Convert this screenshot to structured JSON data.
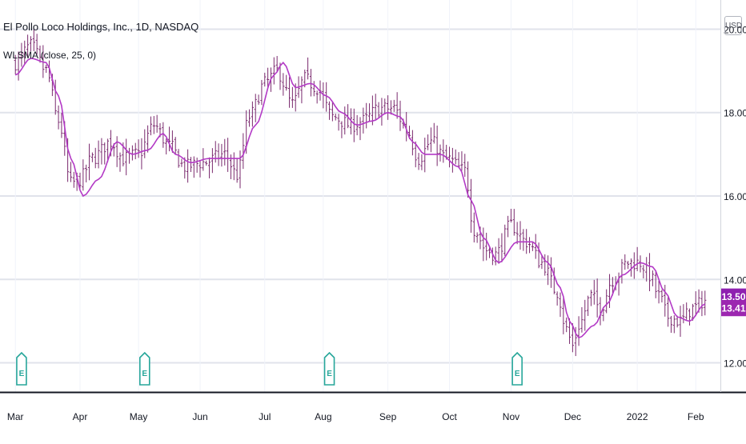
{
  "legend": {
    "symbol_title": "El Pollo Loco Holdings, Inc., 1D, NASDAQ",
    "indicator": "WLSMA (close, 25, 0)"
  },
  "currency_label": "USD",
  "colors": {
    "price_bars": "#7a2a6e",
    "ma_line": "#b339c6",
    "grid": "#e0e3eb",
    "earnings_marker": "#26a69a",
    "label_last": "#8e1fb0",
    "label_ma": "#9c27b0",
    "axis_text": "#131722"
  },
  "chart_data": {
    "type": "line",
    "title": "El Pollo Loco Holdings, Inc., 1D, NASDAQ",
    "ylim": [
      11.3,
      20.7
    ],
    "y_ticks": [
      12.0,
      14.0,
      16.0,
      18.0,
      20.0
    ],
    "y_tick_labels": [
      "12.00",
      "14.00",
      "16.00",
      "18.00",
      "20.00"
    ],
    "xlim_index": [
      -5,
      229
    ],
    "x_tick_labels": [
      {
        "label": "Mar",
        "index": 0
      },
      {
        "label": "Apr",
        "index": 21
      },
      {
        "label": "May",
        "index": 40
      },
      {
        "label": "Jun",
        "index": 60
      },
      {
        "label": "Jul",
        "index": 81
      },
      {
        "label": "Aug",
        "index": 100
      },
      {
        "label": "Sep",
        "index": 121
      },
      {
        "label": "Oct",
        "index": 141
      },
      {
        "label": "Nov",
        "index": 161
      },
      {
        "label": "Dec",
        "index": 181
      },
      {
        "label": "2022",
        "index": 202
      },
      {
        "label": "Feb",
        "index": 221
      }
    ],
    "grid": true,
    "series": [
      {
        "kind": "ohlc",
        "anchors": [
          {
            "i": 0,
            "c": 19.2
          },
          {
            "i": 5,
            "c": 19.6
          },
          {
            "i": 10,
            "c": 19.0
          },
          {
            "i": 14,
            "c": 17.8
          },
          {
            "i": 18,
            "c": 16.3
          },
          {
            "i": 21,
            "c": 16.4
          },
          {
            "i": 25,
            "c": 16.9
          },
          {
            "i": 31,
            "c": 17.3
          },
          {
            "i": 35,
            "c": 16.9
          },
          {
            "i": 40,
            "c": 17.0
          },
          {
            "i": 45,
            "c": 17.7
          },
          {
            "i": 50,
            "c": 17.2
          },
          {
            "i": 55,
            "c": 16.7
          },
          {
            "i": 61,
            "c": 16.8
          },
          {
            "i": 68,
            "c": 17.0
          },
          {
            "i": 72,
            "c": 16.5
          },
          {
            "i": 76,
            "c": 17.9
          },
          {
            "i": 81,
            "c": 18.7
          },
          {
            "i": 85,
            "c": 19.0
          },
          {
            "i": 90,
            "c": 18.2
          },
          {
            "i": 94,
            "c": 18.8
          },
          {
            "i": 98,
            "c": 18.6
          },
          {
            "i": 103,
            "c": 17.9
          },
          {
            "i": 109,
            "c": 17.7
          },
          {
            "i": 113,
            "c": 17.8
          },
          {
            "i": 118,
            "c": 18.1
          },
          {
            "i": 123,
            "c": 18.1
          },
          {
            "i": 127,
            "c": 17.6
          },
          {
            "i": 131,
            "c": 16.9
          },
          {
            "i": 135,
            "c": 17.3
          },
          {
            "i": 140,
            "c": 16.9
          },
          {
            "i": 146,
            "c": 16.6
          },
          {
            "i": 149,
            "c": 15.2
          },
          {
            "i": 153,
            "c": 14.7
          },
          {
            "i": 156,
            "c": 14.6
          },
          {
            "i": 161,
            "c": 15.3
          },
          {
            "i": 166,
            "c": 14.9
          },
          {
            "i": 171,
            "c": 14.4
          },
          {
            "i": 176,
            "c": 13.7
          },
          {
            "i": 179,
            "c": 12.8
          },
          {
            "i": 181,
            "c": 12.4
          },
          {
            "i": 183,
            "c": 12.9
          },
          {
            "i": 187,
            "c": 13.6
          },
          {
            "i": 190,
            "c": 13.3
          },
          {
            "i": 194,
            "c": 14.0
          },
          {
            "i": 199,
            "c": 14.4
          },
          {
            "i": 203,
            "c": 14.4
          },
          {
            "i": 206,
            "c": 14.1
          },
          {
            "i": 209,
            "c": 13.6
          },
          {
            "i": 212,
            "c": 13.1
          },
          {
            "i": 216,
            "c": 13.0
          },
          {
            "i": 220,
            "c": 13.3
          },
          {
            "i": 224,
            "c": 13.5
          }
        ],
        "last_close": 13.5,
        "last_label": "13.50"
      },
      {
        "name": "WLSMA (close, 25, 0)",
        "kind": "line",
        "anchors": [
          {
            "i": 0,
            "v": 18.9
          },
          {
            "i": 5,
            "v": 19.3
          },
          {
            "i": 10,
            "v": 19.2
          },
          {
            "i": 14,
            "v": 18.4
          },
          {
            "i": 18,
            "v": 16.9
          },
          {
            "i": 22,
            "v": 16.0
          },
          {
            "i": 27,
            "v": 16.4
          },
          {
            "i": 33,
            "v": 17.3
          },
          {
            "i": 38,
            "v": 17.0
          },
          {
            "i": 43,
            "v": 17.1
          },
          {
            "i": 48,
            "v": 17.5
          },
          {
            "i": 52,
            "v": 17.0
          },
          {
            "i": 57,
            "v": 16.8
          },
          {
            "i": 63,
            "v": 16.9
          },
          {
            "i": 69,
            "v": 16.9
          },
          {
            "i": 73,
            "v": 16.9
          },
          {
            "i": 78,
            "v": 17.7
          },
          {
            "i": 84,
            "v": 18.9
          },
          {
            "i": 87,
            "v": 19.2
          },
          {
            "i": 91,
            "v": 18.6
          },
          {
            "i": 96,
            "v": 18.7
          },
          {
            "i": 101,
            "v": 18.4
          },
          {
            "i": 106,
            "v": 18.0
          },
          {
            "i": 111,
            "v": 17.7
          },
          {
            "i": 116,
            "v": 17.8
          },
          {
            "i": 121,
            "v": 18.0
          },
          {
            "i": 125,
            "v": 17.9
          },
          {
            "i": 129,
            "v": 17.3
          },
          {
            "i": 133,
            "v": 17.0
          },
          {
            "i": 138,
            "v": 17.0
          },
          {
            "i": 144,
            "v": 16.7
          },
          {
            "i": 148,
            "v": 15.9
          },
          {
            "i": 152,
            "v": 15.0
          },
          {
            "i": 157,
            "v": 14.4
          },
          {
            "i": 163,
            "v": 14.9
          },
          {
            "i": 168,
            "v": 14.9
          },
          {
            "i": 173,
            "v": 14.4
          },
          {
            "i": 177,
            "v": 13.8
          },
          {
            "i": 180,
            "v": 13.0
          },
          {
            "i": 183,
            "v": 12.6
          },
          {
            "i": 188,
            "v": 12.9
          },
          {
            "i": 192,
            "v": 13.4
          },
          {
            "i": 197,
            "v": 14.1
          },
          {
            "i": 203,
            "v": 14.4
          },
          {
            "i": 207,
            "v": 14.3
          },
          {
            "i": 211,
            "v": 13.7
          },
          {
            "i": 215,
            "v": 13.1
          },
          {
            "i": 219,
            "v": 13.0
          },
          {
            "i": 224,
            "v": 13.41
          }
        ],
        "last_value": 13.41,
        "last_label": "13.41"
      }
    ],
    "earnings_events": [
      {
        "index": 2,
        "label": "E"
      },
      {
        "index": 42,
        "label": "E"
      },
      {
        "index": 102,
        "label": "E"
      },
      {
        "index": 163,
        "label": "E"
      }
    ]
  }
}
